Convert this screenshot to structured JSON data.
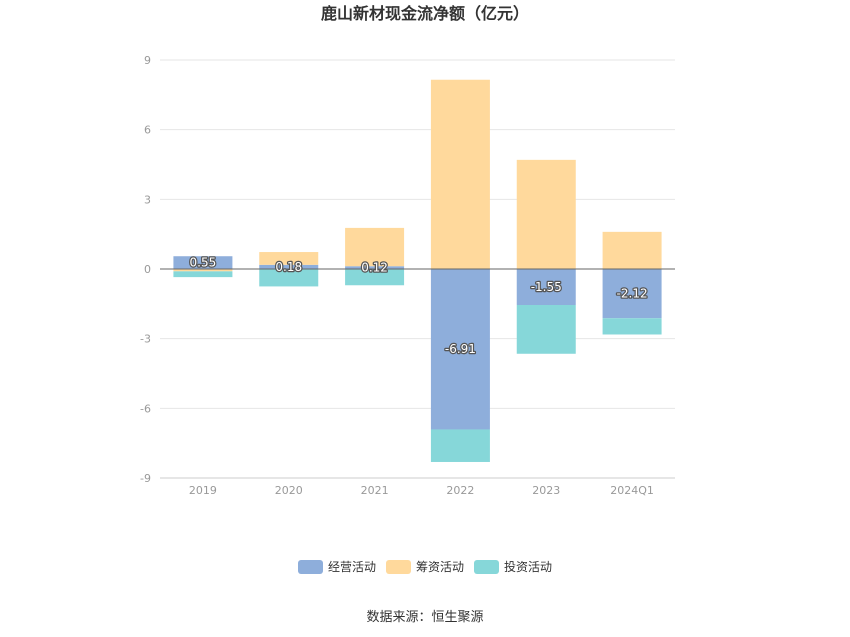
{
  "chart_data": {
    "type": "bar",
    "stacked": true,
    "title": "鹿山新材现金流净额（亿元）",
    "categories": [
      "2019",
      "2020",
      "2021",
      "2022",
      "2023",
      "2024Q1"
    ],
    "ylim": [
      -9,
      9
    ],
    "yticks": [
      "9",
      "6",
      "3",
      "0",
      "-3",
      "-6",
      "-9"
    ],
    "ytick_values": [
      9,
      6,
      3,
      0,
      -3,
      -6,
      -9
    ],
    "grid": true,
    "legend_position": "bottom",
    "series": [
      {
        "name": "经营活动",
        "color": "#8eaedb",
        "values": [
          0.55,
          0.18,
          0.12,
          -6.91,
          -1.55,
          -2.12
        ]
      },
      {
        "name": "筹资活动",
        "color": "#ffd99c",
        "values": [
          -0.1,
          0.55,
          1.65,
          8.15,
          4.7,
          1.6
        ]
      },
      {
        "name": "投资活动",
        "color": "#86d7d9",
        "values": [
          -0.25,
          -0.75,
          -0.7,
          -1.4,
          -2.1,
          -0.7
        ]
      }
    ],
    "data_labels": [
      "0.55",
      "0.18",
      "0.12",
      "-6.91",
      "-1.55",
      "-2.12"
    ]
  },
  "source_text": "数据来源：恒生聚源"
}
